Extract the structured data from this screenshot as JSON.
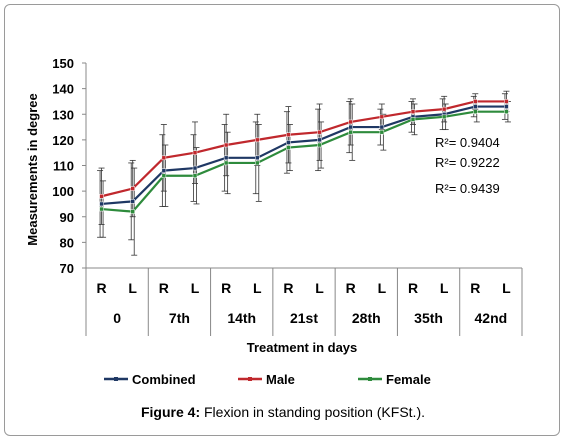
{
  "chart_data": {
    "type": "line",
    "ylabel": "Measurements in degree",
    "xlabel": "Treatment in days",
    "ylim": [
      70,
      150
    ],
    "yticks": [
      70,
      80,
      90,
      100,
      110,
      120,
      130,
      140,
      150
    ],
    "groups": [
      "0",
      "7th",
      "14th",
      "21st",
      "28th",
      "35th",
      "42nd"
    ],
    "sides": [
      "R",
      "L"
    ],
    "series": [
      {
        "name": "Combined",
        "color": "#1f3864",
        "values": [
          95,
          96,
          108,
          109,
          113,
          113,
          119,
          120,
          125,
          125,
          129,
          130,
          133,
          133
        ],
        "error": [
          13,
          15,
          14,
          13,
          13,
          14,
          12,
          12,
          10,
          7,
          6,
          6,
          4,
          5
        ]
      },
      {
        "name": "Male",
        "color": "#c0282d",
        "values": [
          98,
          101,
          113,
          115,
          118,
          120,
          122,
          123,
          127,
          129,
          131,
          132,
          135,
          135
        ],
        "error": [
          11,
          11,
          13,
          12,
          12,
          10,
          11,
          11,
          9,
          5,
          5,
          5,
          3,
          4
        ]
      },
      {
        "name": "Female",
        "color": "#2e8b3c",
        "values": [
          93,
          92,
          106,
          106,
          111,
          111,
          117,
          118,
          123,
          123,
          128,
          129,
          131,
          131
        ],
        "error": [
          11,
          17,
          12,
          11,
          12,
          15,
          9,
          9,
          11,
          7,
          6,
          5,
          4,
          4
        ]
      }
    ],
    "annotations": [
      "R²= 0.9404",
      "R²= 0.9222",
      "R²= 0.9439"
    ],
    "legend_position": "bottom",
    "grid": false
  },
  "caption": {
    "label": "Figure 4:",
    "text": " Flexion in standing position (KFSt.)."
  }
}
